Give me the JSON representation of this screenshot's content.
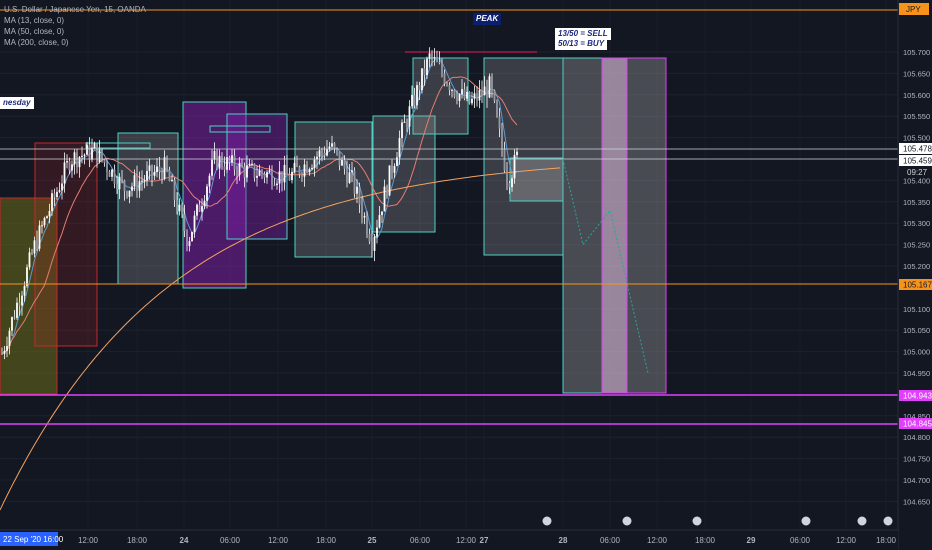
{
  "symbol": {
    "title": "U.S. Dollar / Japanese Yen, 15, OANDA",
    "ma13": "MA (13, close, 0)",
    "ma50": "MA (50, close, 0)",
    "ma200": "MA (200, close, 0)",
    "currency": "JPY"
  },
  "annotations": {
    "peak": "PEAK",
    "sell_rule": "13/50 = SELL",
    "buy_rule": "50/13 = BUY",
    "day_label": "nesday"
  },
  "price_axis": {
    "ticks": [
      "105.700",
      "105.650",
      "105.600",
      "105.550",
      "105.500",
      "105.400",
      "105.350",
      "105.300",
      "105.250",
      "105.200",
      "105.100",
      "105.050",
      "105.000",
      "104.950",
      "104.850",
      "104.800",
      "104.750",
      "104.700",
      "104.650"
    ],
    "last_price": "105.478",
    "current_price": "105.459",
    "countdown": "09:27",
    "level_orange": "105.167",
    "level_magenta_1": "104.943",
    "level_magenta_2": "104.845"
  },
  "time_axis": {
    "start_label": "22 Sep '20  16:00",
    "ticks": [
      "12:00",
      "18:00",
      "24",
      "06:00",
      "12:00",
      "18:00",
      "25",
      "06:00",
      "12:00",
      "27",
      "28",
      "06:00",
      "12:00",
      "18:00",
      "29",
      "06:00",
      "12:00",
      "18:00"
    ]
  },
  "colors": {
    "background": "#131722",
    "candle": "#ffffff",
    "ma13": "#5b9bd5",
    "ma50": "#e57c73",
    "ma200": "#f4a261",
    "orange_level": "#f7931a",
    "magenta_level": "#e040fb",
    "teal_box": "#4dd0c4",
    "purple_box": "#7b1fa2",
    "red_box": "#c62828",
    "olive_box": "#6b6b1a"
  },
  "chart_data": {
    "type": "candlestick",
    "instrument": "USD/JPY",
    "timeframe": "15",
    "ylim": [
      104.63,
      105.75
    ],
    "close_path": [
      {
        "x": "22 Sep 16:00",
        "y": 104.98
      },
      {
        "x": "23 Sep 00:00",
        "y": 105.25
      },
      {
        "x": "23 Sep 06:00",
        "y": 105.45
      },
      {
        "x": "23 Sep 12:00",
        "y": 105.47
      },
      {
        "x": "23 Sep 18:00",
        "y": 105.38
      },
      {
        "x": "24 Sep 00:00",
        "y": 105.43
      },
      {
        "x": "24 Sep 03:00",
        "y": 105.26
      },
      {
        "x": "24 Sep 06:00",
        "y": 105.45
      },
      {
        "x": "24 Sep 12:00",
        "y": 105.42
      },
      {
        "x": "24 Sep 18:00",
        "y": 105.41
      },
      {
        "x": "25 Sep 00:00",
        "y": 105.48
      },
      {
        "x": "25 Sep 06:00",
        "y": 105.4
      },
      {
        "x": "25 Sep 09:00",
        "y": 105.26
      },
      {
        "x": "25 Sep 14:00",
        "y": 105.5
      },
      {
        "x": "25 Sep 18:00",
        "y": 105.69
      },
      {
        "x": "26 Sep 00:00",
        "y": 105.61
      },
      {
        "x": "26 Sep 06:00",
        "y": 105.58
      },
      {
        "x": "27 Sep 00:00",
        "y": 105.62
      },
      {
        "x": "27 Sep 04:00",
        "y": 105.4
      },
      {
        "x": "27 Sep 06:00",
        "y": 105.46
      }
    ],
    "projection": [
      {
        "x": "27 Sep 12:00",
        "y": 105.45
      },
      {
        "x": "28 Sep 03:00",
        "y": 105.25
      },
      {
        "x": "28 Sep 06:00",
        "y": 105.33
      },
      {
        "x": "28 Sep 12:00",
        "y": 104.95
      }
    ],
    "levels": [
      105.478,
      105.459,
      105.167,
      104.943,
      104.845
    ]
  }
}
